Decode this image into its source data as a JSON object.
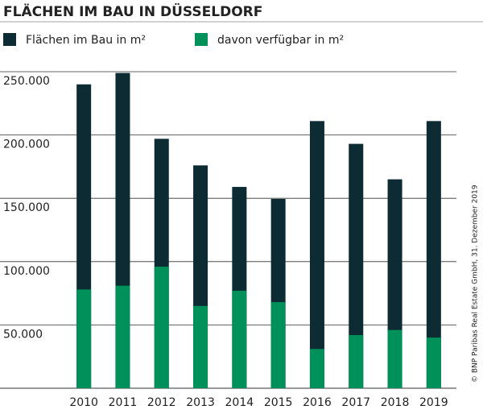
{
  "chart_data": {
    "type": "bar",
    "overlap": true,
    "title": "FLÄCHEN IM BAU IN DÜSSELDORF",
    "source": "© BNP Paribas Real Estate GmbH, 31. Dezember 2019",
    "categories": [
      "2010",
      "2011",
      "2012",
      "2013",
      "2014",
      "2015",
      "2016",
      "2017",
      "2018",
      "2019"
    ],
    "series": [
      {
        "name": "Flächen im Bau in m²",
        "color": "#0d2b33",
        "values": [
          240000,
          249000,
          197000,
          176000,
          159000,
          149500,
          211000,
          193000,
          165000,
          211000
        ]
      },
      {
        "name": "davon verfügbar in m²",
        "color": "#00915a",
        "values": [
          78000,
          81000,
          96000,
          65000,
          77000,
          68000,
          31000,
          42000,
          46000,
          40000
        ]
      }
    ],
    "ylim": [
      0,
      250000
    ],
    "yticks": [
      {
        "value": 50000,
        "label": "50.000"
      },
      {
        "value": 100000,
        "label": "100.000"
      },
      {
        "value": 150000,
        "label": "150.000"
      },
      {
        "value": 200000,
        "label": "200.000"
      },
      {
        "value": 250000,
        "label": "250.000"
      }
    ],
    "grid": true
  }
}
